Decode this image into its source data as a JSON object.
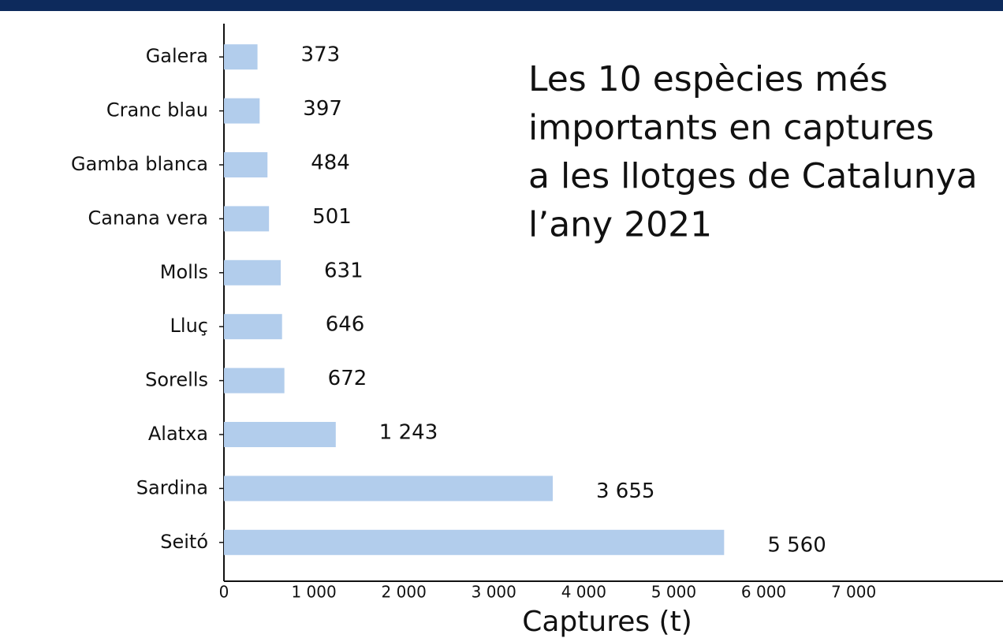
{
  "chart_data": {
    "type": "hbar",
    "title": [
      "Les 10 espècies més",
      "importants en captures",
      "a les llotges de Catalunya",
      "l’any 2021"
    ],
    "x_label": "Captures (t)",
    "categories": [
      "Galera",
      "Cranc blau",
      "Gamba blanca",
      "Canana vera",
      "Molls",
      "Lluç",
      "Sorells",
      "Alatxa",
      "Sardina",
      "Seitó"
    ],
    "values": [
      373,
      397,
      484,
      501,
      631,
      646,
      672,
      1243,
      3655,
      5560
    ],
    "value_labels": [
      "373",
      "397",
      "484",
      "501",
      "631",
      "646",
      "672",
      "1 243",
      "3 655",
      "5 560"
    ],
    "color": "#b2cdec",
    "xlim": [
      0,
      8660
    ],
    "xticks": [
      0,
      {
        "value": 1000,
        "label": "1 000"
      },
      {
        "value": 2000,
        "label": "2 000"
      },
      {
        "value": 3000,
        "label": "3 000"
      },
      {
        "value": 4000,
        "label": "4 000"
      },
      {
        "value": 5000,
        "label": "5 000"
      },
      {
        "value": 6000,
        "label": "6 000"
      },
      {
        "value": 7000,
        "label": "7 000"
      }
    ],
    "grid": false
  }
}
